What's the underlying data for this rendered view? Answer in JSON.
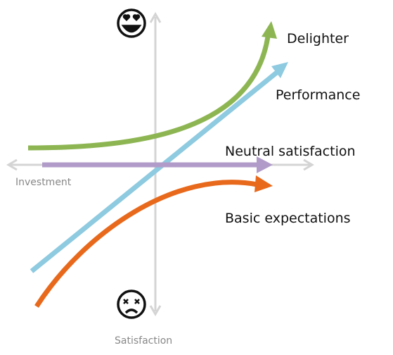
{
  "labels": {
    "delighter": "Delighter",
    "performance": "Performance",
    "neutral": "Neutral satisfaction",
    "basic": "Basic expectations"
  },
  "axes": {
    "x": "Investment",
    "y": "Satisfaction"
  }
}
